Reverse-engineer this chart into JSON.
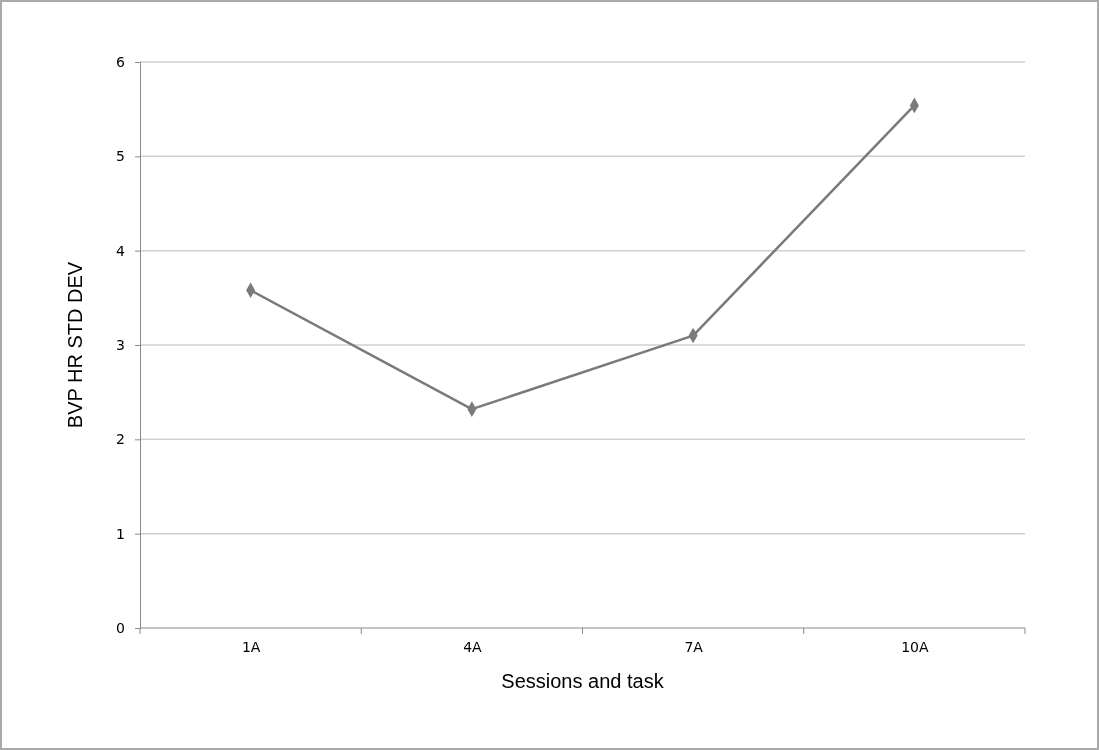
{
  "chart_data": {
    "type": "line",
    "xlabel": "Sessions and task",
    "ylabel": "BVP HR  STD DEV",
    "categories": [
      "1A",
      "4A",
      "7A",
      "10A"
    ],
    "series": [
      {
        "color": "#7a7a7a",
        "values": [
          3.58,
          2.32,
          3.1,
          5.54
        ]
      }
    ],
    "ylim": [
      0,
      6
    ],
    "yticks": [
      0,
      1,
      2,
      3,
      4,
      5,
      6
    ],
    "grid": "y",
    "marker": "diamond",
    "line_style": "solid"
  }
}
